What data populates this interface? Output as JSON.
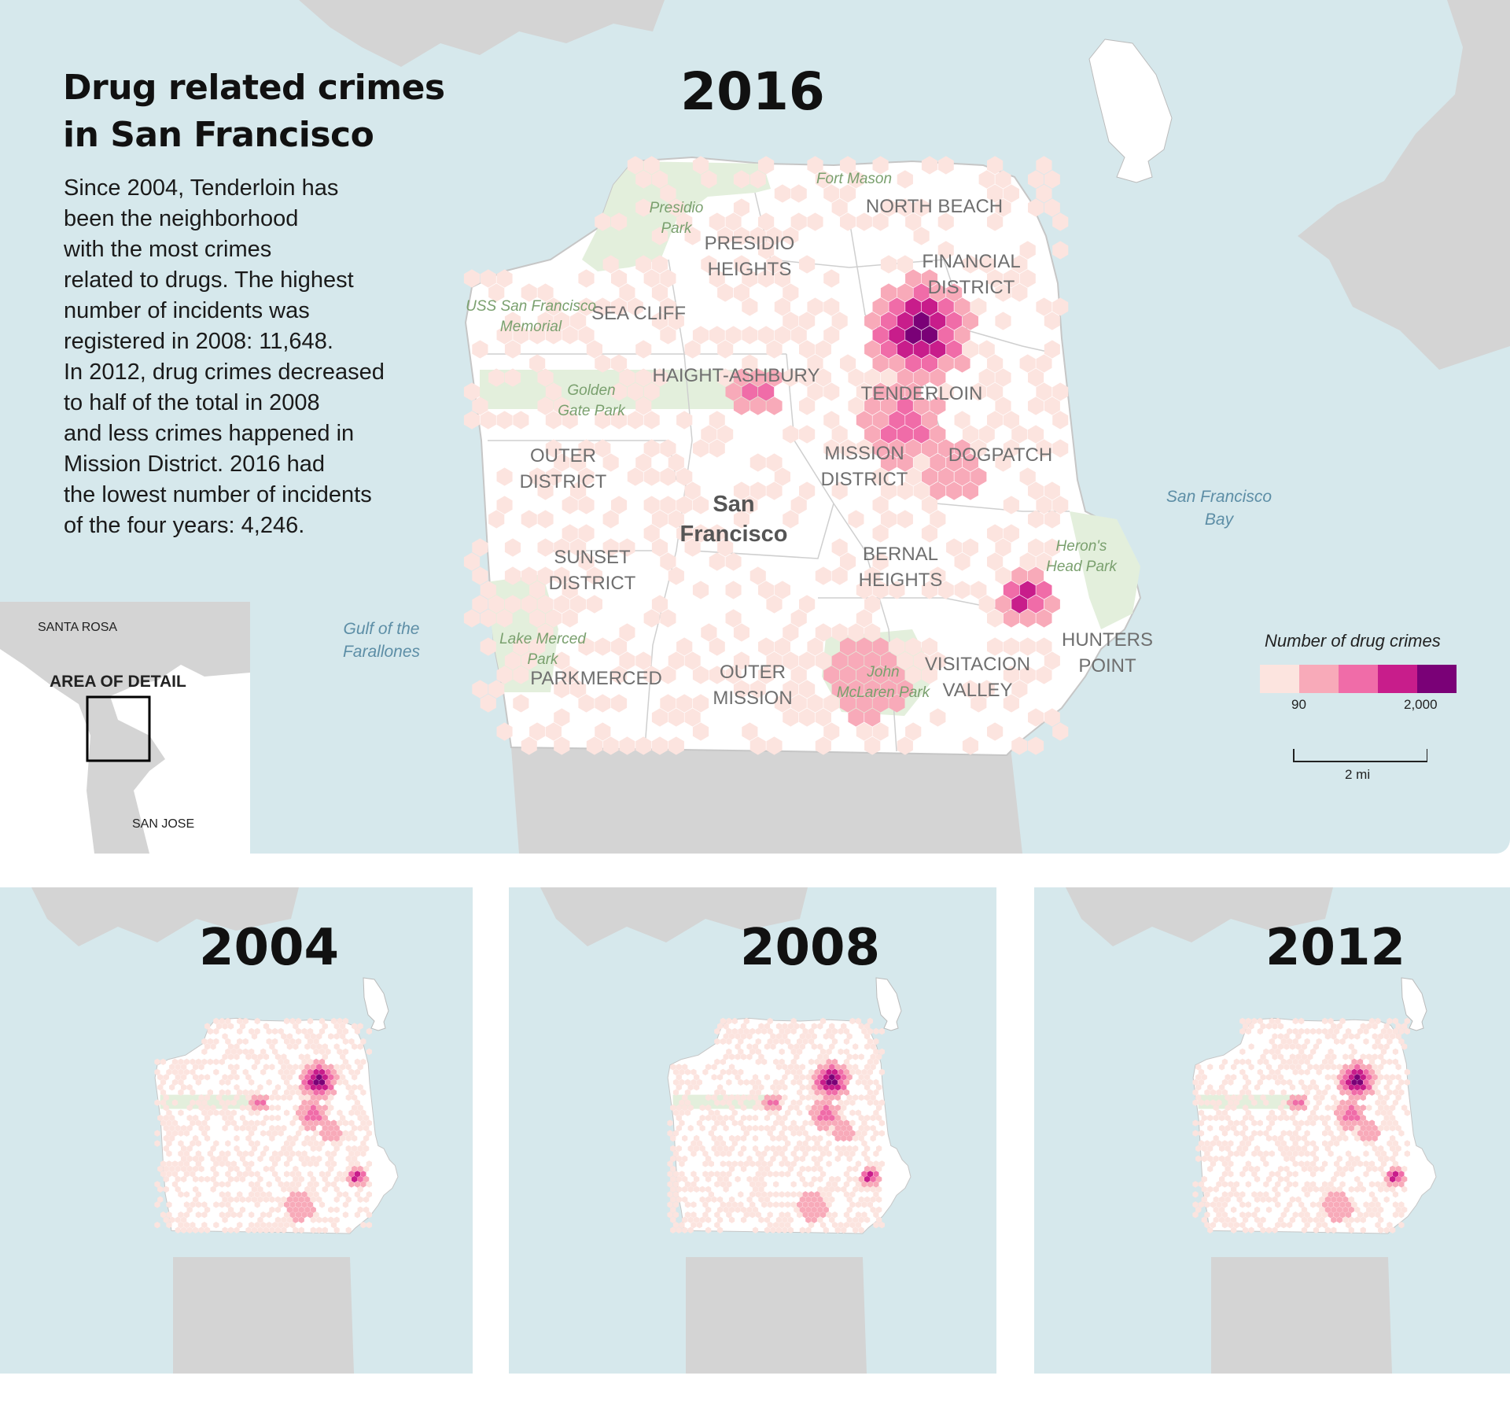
{
  "title_lines": [
    "Drug related crimes",
    "in San Francisco"
  ],
  "description_lines": [
    "Since 2004, Tenderloin has",
    "been the neighborhood",
    "with the most crimes",
    "related to drugs. The highest",
    "number of incidents was",
    "registered in 2008: 11,648.",
    "In 2012, drug crimes decreased",
    "to half of the total in 2008",
    "and less crimes happened in",
    "Mission District. 2016 had",
    "the lowest number of incidents",
    "of the four years: 4,246."
  ],
  "main_map": {
    "year": "2016",
    "city_label": [
      "San",
      "Francisco"
    ],
    "neighborhoods": [
      {
        "id": "north-beach",
        "lines": [
          "NORTH BEACH"
        ]
      },
      {
        "id": "financial-district",
        "lines": [
          "FINANCIAL",
          "DISTRICT"
        ]
      },
      {
        "id": "presidio-heights",
        "lines": [
          "PRESIDIO",
          "HEIGHTS"
        ]
      },
      {
        "id": "sea-cliff",
        "lines": [
          "SEA CLIFF"
        ]
      },
      {
        "id": "haight-ashbury",
        "lines": [
          "HAIGHT-ASHBURY"
        ]
      },
      {
        "id": "tenderloin",
        "lines": [
          "TENDERLOIN"
        ]
      },
      {
        "id": "outer-district",
        "lines": [
          "OUTER",
          "DISTRICT"
        ]
      },
      {
        "id": "mission-district",
        "lines": [
          "MISSION",
          "DISTRICT"
        ]
      },
      {
        "id": "dogpatch",
        "lines": [
          "DOGPATCH"
        ]
      },
      {
        "id": "sunset-district",
        "lines": [
          "SUNSET",
          "DISTRICT"
        ]
      },
      {
        "id": "bernal-heights",
        "lines": [
          "BERNAL",
          "HEIGHTS"
        ]
      },
      {
        "id": "hunters-point",
        "lines": [
          "HUNTERS",
          "POINT"
        ]
      },
      {
        "id": "visitacion-valley",
        "lines": [
          "VISITACION",
          "VALLEY"
        ]
      },
      {
        "id": "parkmerced",
        "lines": [
          "PARKMERCED"
        ]
      },
      {
        "id": "outer-mission",
        "lines": [
          "OUTER",
          "MISSION"
        ]
      }
    ],
    "parks": [
      {
        "id": "fort-mason",
        "lines": [
          "Fort Mason"
        ]
      },
      {
        "id": "presidio-park",
        "lines": [
          "Presidio",
          "Park"
        ]
      },
      {
        "id": "uss-memorial",
        "lines": [
          "USS San Francisco",
          "Memorial"
        ]
      },
      {
        "id": "golden-gate-park",
        "lines": [
          "Golden",
          "Gate Park"
        ]
      },
      {
        "id": "herons-head-park",
        "lines": [
          "Heron's",
          "Head Park"
        ]
      },
      {
        "id": "lake-merced-park",
        "lines": [
          "Lake Merced",
          "Park"
        ]
      },
      {
        "id": "john-mclaren-park",
        "lines": [
          "John",
          "McLaren Park"
        ]
      }
    ],
    "water_labels": [
      {
        "id": "gulf-farallones",
        "lines": [
          "Gulf of the",
          "Farallones"
        ]
      },
      {
        "id": "sf-bay",
        "lines": [
          "San Francisco",
          "Bay"
        ]
      }
    ]
  },
  "inset": {
    "north_label": "SANTA ROSA",
    "area_label": "AREA OF DETAIL",
    "south_label": "SAN JOSE"
  },
  "legend": {
    "title": "Number of drug crimes",
    "colors": [
      "#fce4df",
      "#f8aab9",
      "#f06ca8",
      "#c81d8b",
      "#7a0177"
    ],
    "low_label": "90",
    "high_label": "2,000"
  },
  "scale_bar": {
    "label": "2 mi"
  },
  "small_maps": [
    {
      "id": "2004",
      "year": "2004"
    },
    {
      "id": "2008",
      "year": "2008"
    },
    {
      "id": "2012",
      "year": "2012"
    }
  ],
  "colors": {
    "water": "#d6e8ec",
    "land_other": "#d4d4d4",
    "land_city": "#ffffff",
    "park": "#e3efdc",
    "neighborhood_label": "#6f6f6f"
  }
}
